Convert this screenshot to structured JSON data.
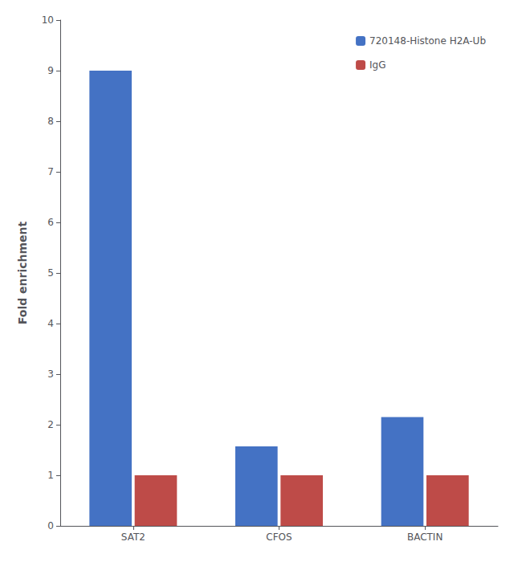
{
  "chart_data": {
    "type": "bar",
    "categories": [
      "SAT2",
      "CFOS",
      "BACTIN"
    ],
    "series": [
      {
        "name": "720148-Histone H2A-Ub",
        "color": "#4472C4",
        "values": [
          9.0,
          1.57,
          2.15
        ]
      },
      {
        "name": "IgG",
        "color": "#BE4B48",
        "values": [
          1.0,
          1.0,
          1.0
        ]
      }
    ],
    "ylabel": "Fold enrichment",
    "ylim": [
      0,
      10
    ],
    "yticks": [
      0,
      1,
      2,
      3,
      4,
      5,
      6,
      7,
      8,
      9,
      10
    ],
    "grid": false,
    "legend": "upper right"
  }
}
